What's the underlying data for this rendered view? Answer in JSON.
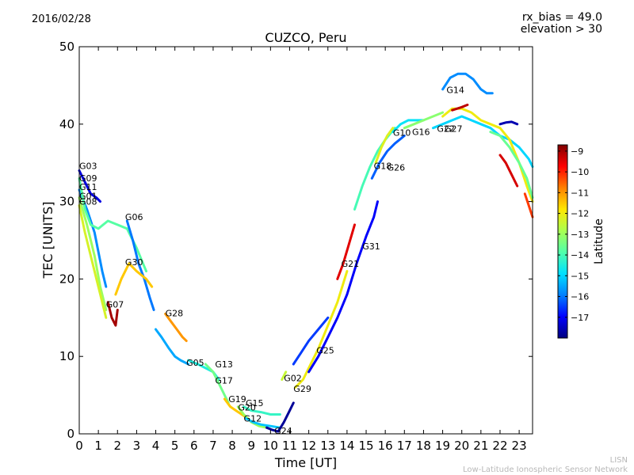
{
  "header": {
    "date": "2016/02/28",
    "rx_bias": "rx_bias = 49.0",
    "elevation": "elevation > 30"
  },
  "footer": {
    "line1": "LISN",
    "line2": "Low-Latitude Ionospheric Sensor Network"
  },
  "chart_data": {
    "type": "scatter",
    "title": "CUZCO, Peru",
    "xlabel": "Time [UT]",
    "ylabel": "TEC [UNITS]",
    "xlim": [
      0,
      23.7
    ],
    "ylim": [
      0,
      50
    ],
    "xticks": [
      0,
      1,
      2,
      3,
      4,
      5,
      6,
      7,
      8,
      9,
      10,
      11,
      12,
      13,
      14,
      15,
      16,
      17,
      18,
      19,
      20,
      21,
      22,
      23
    ],
    "yticks": [
      0,
      10,
      20,
      30,
      40,
      50
    ],
    "grid": false,
    "colorbar": {
      "label": "Latitude",
      "range": [
        -18,
        -8.7
      ],
      "ticks": [
        -9,
        -10,
        -11,
        -12,
        -13,
        -14,
        -15,
        -16,
        -17
      ],
      "colormap": [
        "#00007f",
        "#0000ff",
        "#0080ff",
        "#00e0ff",
        "#50ffaa",
        "#aaff50",
        "#ffe600",
        "#ff8000",
        "#ff0000",
        "#7f0000"
      ]
    },
    "series": [
      {
        "name": "G03",
        "lat": -17.2,
        "points": [
          [
            0,
            34
          ],
          [
            0.3,
            32.5
          ],
          [
            0.6,
            31
          ],
          [
            0.9,
            30.5
          ],
          [
            1.1,
            30
          ]
        ]
      },
      {
        "name": "G11",
        "lat": -15.8,
        "points": [
          [
            0,
            31.5
          ],
          [
            0.4,
            29
          ],
          [
            0.8,
            26
          ],
          [
            1.2,
            21
          ],
          [
            1.4,
            19
          ]
        ]
      },
      {
        "name": "G01",
        "lat": -13.0,
        "points": [
          [
            0,
            30.5
          ],
          [
            0.4,
            27
          ],
          [
            0.8,
            23
          ],
          [
            1.1,
            19
          ],
          [
            1.4,
            16
          ]
        ]
      },
      {
        "name": "G08",
        "lat": -12.3,
        "points": [
          [
            0,
            29.5
          ],
          [
            0.3,
            26
          ],
          [
            0.6,
            23
          ],
          [
            0.9,
            20
          ],
          [
            1.2,
            17
          ],
          [
            1.4,
            15
          ]
        ]
      },
      {
        "name": "G09",
        "lat": -13.8,
        "points": [
          [
            0,
            33
          ],
          [
            0.3,
            29
          ],
          [
            0.6,
            27
          ],
          [
            1.0,
            26.5
          ],
          [
            1.5,
            27.5
          ],
          [
            2.0,
            27
          ],
          [
            2.5,
            26.5
          ],
          [
            3.0,
            24
          ],
          [
            3.5,
            21
          ]
        ]
      },
      {
        "name": "G07",
        "lat": -9.0,
        "points": [
          [
            1.5,
            17
          ],
          [
            1.7,
            15
          ],
          [
            1.9,
            14
          ],
          [
            2.0,
            16
          ]
        ]
      },
      {
        "name": "G06",
        "lat": -16.0,
        "points": [
          [
            2.5,
            27.5
          ],
          [
            2.8,
            25
          ],
          [
            3.1,
            22
          ],
          [
            3.4,
            20
          ],
          [
            3.7,
            17.5
          ],
          [
            3.9,
            16
          ]
        ]
      },
      {
        "name": "G30",
        "lat": -11.5,
        "points": [
          [
            1.9,
            18
          ],
          [
            2.2,
            20
          ],
          [
            2.6,
            22
          ],
          [
            3.0,
            21
          ],
          [
            3.5,
            20
          ],
          [
            3.8,
            19
          ]
        ]
      },
      {
        "name": "G28",
        "lat": -11.0,
        "points": [
          [
            4.5,
            15.5
          ],
          [
            4.8,
            14.5
          ],
          [
            5.1,
            13.5
          ],
          [
            5.4,
            12.5
          ],
          [
            5.6,
            12
          ]
        ]
      },
      {
        "name": "G05",
        "lat": -15.5,
        "points": [
          [
            4.0,
            13.5
          ],
          [
            4.3,
            12.5
          ],
          [
            4.7,
            11
          ],
          [
            5.0,
            10
          ],
          [
            5.3,
            9.5
          ],
          [
            5.7,
            9
          ]
        ]
      },
      {
        "name": "G13",
        "lat": -14.5,
        "points": [
          [
            5.7,
            9.5
          ],
          [
            6.2,
            9
          ],
          [
            6.6,
            8.5
          ],
          [
            7.0,
            8
          ],
          [
            7.3,
            7
          ]
        ]
      },
      {
        "name": "G17",
        "lat": -13.5,
        "points": [
          [
            6.6,
            9
          ],
          [
            7.0,
            8
          ],
          [
            7.3,
            6.5
          ],
          [
            7.6,
            5
          ],
          [
            7.8,
            4
          ]
        ]
      },
      {
        "name": "G19",
        "lat": -11.5,
        "points": [
          [
            7.6,
            4.5
          ],
          [
            7.9,
            3.5
          ],
          [
            8.2,
            3
          ],
          [
            8.5,
            2.5
          ],
          [
            8.8,
            2
          ]
        ]
      },
      {
        "name": "G20",
        "lat": -13.0,
        "points": [
          [
            8.3,
            3.5
          ],
          [
            8.6,
            2.5
          ],
          [
            9.0,
            1.5
          ],
          [
            9.4,
            1
          ],
          [
            9.8,
            0.8
          ]
        ]
      },
      {
        "name": "G15",
        "lat": -14.2,
        "points": [
          [
            8.6,
            3.5
          ],
          [
            9.0,
            3
          ],
          [
            9.5,
            2.8
          ],
          [
            10.0,
            2.5
          ],
          [
            10.5,
            2.5
          ]
        ]
      },
      {
        "name": "G12",
        "lat": -15.2,
        "points": [
          [
            8.7,
            2
          ],
          [
            9.1,
            1.5
          ],
          [
            9.5,
            1.2
          ],
          [
            10.0,
            1
          ],
          [
            10.5,
            0.8
          ]
        ]
      },
      {
        "name": "G24",
        "lat": -17.8,
        "points": [
          [
            9.8,
            0.8
          ],
          [
            10.1,
            0.5
          ],
          [
            10.4,
            0.3
          ],
          [
            10.7,
            1.5
          ],
          [
            11.0,
            3
          ],
          [
            11.2,
            4
          ]
        ]
      },
      {
        "name": "G02",
        "lat": -12.5,
        "points": [
          [
            10.6,
            7
          ],
          [
            10.8,
            8
          ]
        ]
      },
      {
        "name": "G29",
        "lat": -12.0,
        "points": [
          [
            11.3,
            6
          ],
          [
            11.7,
            7
          ],
          [
            12.0,
            8.5
          ],
          [
            12.5,
            11
          ],
          [
            13.0,
            14
          ],
          [
            13.5,
            17
          ],
          [
            14.0,
            21
          ]
        ]
      },
      {
        "name": "G25",
        "lat": -16.5,
        "points": [
          [
            11.2,
            9
          ],
          [
            11.6,
            10.5
          ],
          [
            12.0,
            12
          ],
          [
            12.5,
            13.5
          ],
          [
            13.0,
            15
          ]
        ]
      },
      {
        "name": "G21",
        "lat": -9.5,
        "points": [
          [
            13.5,
            20
          ],
          [
            13.8,
            22
          ],
          [
            14.1,
            24.5
          ],
          [
            14.4,
            27
          ]
        ]
      },
      {
        "name": "G31",
        "lat": -17.0,
        "points": [
          [
            12.0,
            8
          ],
          [
            12.5,
            10
          ],
          [
            13.0,
            12.5
          ],
          [
            13.5,
            15
          ],
          [
            14.0,
            18
          ],
          [
            14.5,
            22
          ],
          [
            15.0,
            25.5
          ],
          [
            15.4,
            28
          ],
          [
            15.6,
            30
          ]
        ]
      },
      {
        "name": "G18",
        "lat": -14.0,
        "points": [
          [
            14.4,
            29
          ],
          [
            14.8,
            32
          ],
          [
            15.2,
            34.5
          ],
          [
            15.6,
            36.5
          ],
          [
            16.0,
            38
          ],
          [
            16.5,
            39.5
          ]
        ]
      },
      {
        "name": "G26",
        "lat": -16.2,
        "points": [
          [
            15.3,
            33
          ],
          [
            15.7,
            35
          ],
          [
            16.1,
            36.5
          ],
          [
            16.5,
            37.5
          ],
          [
            17.0,
            38.5
          ]
        ]
      },
      {
        "name": "G10",
        "lat": -12.2,
        "points": [
          [
            15.5,
            35
          ],
          [
            15.8,
            37
          ],
          [
            16.1,
            38.5
          ],
          [
            16.4,
            39.5
          ]
        ]
      },
      {
        "name": "G16",
        "lat": -14.8,
        "points": [
          [
            16.4,
            39
          ],
          [
            16.8,
            40
          ],
          [
            17.2,
            40.5
          ],
          [
            17.6,
            40.5
          ],
          [
            18.0,
            40.5
          ]
        ]
      },
      {
        "name": "G22",
        "lat": -13.2,
        "points": [
          [
            17.0,
            39.5
          ],
          [
            17.5,
            40
          ],
          [
            18.0,
            40.5
          ],
          [
            18.5,
            41
          ],
          [
            19.0,
            41.5
          ]
        ]
      },
      {
        "name": "G27",
        "lat": -15.0,
        "points": [
          [
            18.5,
            39.5
          ],
          [
            19.0,
            40
          ],
          [
            19.5,
            40.5
          ],
          [
            20.0,
            41
          ],
          [
            20.5,
            40.5
          ],
          [
            21.0,
            40
          ],
          [
            21.5,
            39.5
          ],
          [
            22.0,
            38.5
          ],
          [
            22.5,
            38
          ],
          [
            23.0,
            37
          ],
          [
            23.5,
            35.5
          ],
          [
            23.7,
            34.5
          ]
        ]
      },
      {
        "name": "G14",
        "lat": -15.8,
        "points": [
          [
            19.0,
            44.5
          ],
          [
            19.4,
            46
          ],
          [
            19.8,
            46.5
          ],
          [
            20.2,
            46.5
          ],
          [
            20.6,
            45.8
          ],
          [
            21.0,
            44.5
          ],
          [
            21.3,
            44
          ],
          [
            21.6,
            44
          ]
        ]
      },
      {
        "name": "",
        "lat": -12.0,
        "points": [
          [
            19.0,
            41
          ],
          [
            19.5,
            42
          ],
          [
            20.0,
            42
          ],
          [
            20.5,
            41.5
          ],
          [
            21.0,
            40.5
          ],
          [
            21.5,
            40
          ],
          [
            22.0,
            39.5
          ],
          [
            22.5,
            38
          ],
          [
            23.0,
            35
          ],
          [
            23.4,
            32
          ],
          [
            23.7,
            30
          ]
        ]
      },
      {
        "name": "",
        "lat": -9.2,
        "points": [
          [
            19.5,
            41.8
          ],
          [
            20.0,
            42.2
          ],
          [
            20.3,
            42.5
          ]
        ]
      },
      {
        "name": "",
        "lat": -17.6,
        "points": [
          [
            22.0,
            40
          ],
          [
            22.3,
            40.2
          ],
          [
            22.6,
            40.3
          ],
          [
            22.9,
            40
          ]
        ]
      },
      {
        "name": "",
        "lat": -9.4,
        "points": [
          [
            22.0,
            36
          ],
          [
            22.3,
            35
          ],
          [
            22.6,
            33.5
          ],
          [
            22.9,
            32
          ]
        ]
      },
      {
        "name": "",
        "lat": -13.6,
        "points": [
          [
            21.5,
            39
          ],
          [
            22.0,
            38.5
          ],
          [
            22.5,
            37
          ],
          [
            23.0,
            35
          ],
          [
            23.4,
            33
          ],
          [
            23.7,
            30.5
          ]
        ]
      },
      {
        "name": "",
        "lat": -10.2,
        "points": [
          [
            23.3,
            31
          ],
          [
            23.5,
            29.5
          ],
          [
            23.7,
            28
          ]
        ]
      }
    ],
    "annotations": [
      {
        "text": "G03",
        "x": 0.0,
        "y": 34.2
      },
      {
        "text": "G09",
        "x": 0.0,
        "y": 32.6
      },
      {
        "text": "G11",
        "x": 0.0,
        "y": 31.5
      },
      {
        "text": "G01",
        "x": 0.0,
        "y": 30.3
      },
      {
        "text": "G08",
        "x": 0.0,
        "y": 29.6
      },
      {
        "text": "G07",
        "x": 1.4,
        "y": 16.3
      },
      {
        "text": "G06",
        "x": 2.4,
        "y": 27.6
      },
      {
        "text": "G30",
        "x": 2.4,
        "y": 21.8
      },
      {
        "text": "G28",
        "x": 4.5,
        "y": 15.2
      },
      {
        "text": "G05",
        "x": 5.6,
        "y": 8.8
      },
      {
        "text": "G13",
        "x": 7.1,
        "y": 8.6
      },
      {
        "text": "G17",
        "x": 7.1,
        "y": 6.5
      },
      {
        "text": "G19",
        "x": 7.8,
        "y": 4.1
      },
      {
        "text": "G15",
        "x": 8.7,
        "y": 3.6
      },
      {
        "text": "G20",
        "x": 8.3,
        "y": 3.0
      },
      {
        "text": "G12",
        "x": 8.6,
        "y": 1.6
      },
      {
        "text": "G24",
        "x": 10.2,
        "y": 0.0
      },
      {
        "text": "G02",
        "x": 10.7,
        "y": 6.8
      },
      {
        "text": "G29",
        "x": 11.2,
        "y": 5.4
      },
      {
        "text": "G25",
        "x": 12.4,
        "y": 10.4
      },
      {
        "text": "G21",
        "x": 13.7,
        "y": 21.6
      },
      {
        "text": "G31",
        "x": 14.8,
        "y": 23.8
      },
      {
        "text": "G18",
        "x": 15.4,
        "y": 34.2
      },
      {
        "text": "G26",
        "x": 16.1,
        "y": 34.0
      },
      {
        "text": "G10",
        "x": 16.4,
        "y": 38.5
      },
      {
        "text": "G16",
        "x": 17.4,
        "y": 38.6
      },
      {
        "text": "G22",
        "x": 18.7,
        "y": 39.0
      },
      {
        "text": "G27",
        "x": 19.1,
        "y": 39.0
      },
      {
        "text": "G14",
        "x": 19.2,
        "y": 44.0
      }
    ]
  }
}
